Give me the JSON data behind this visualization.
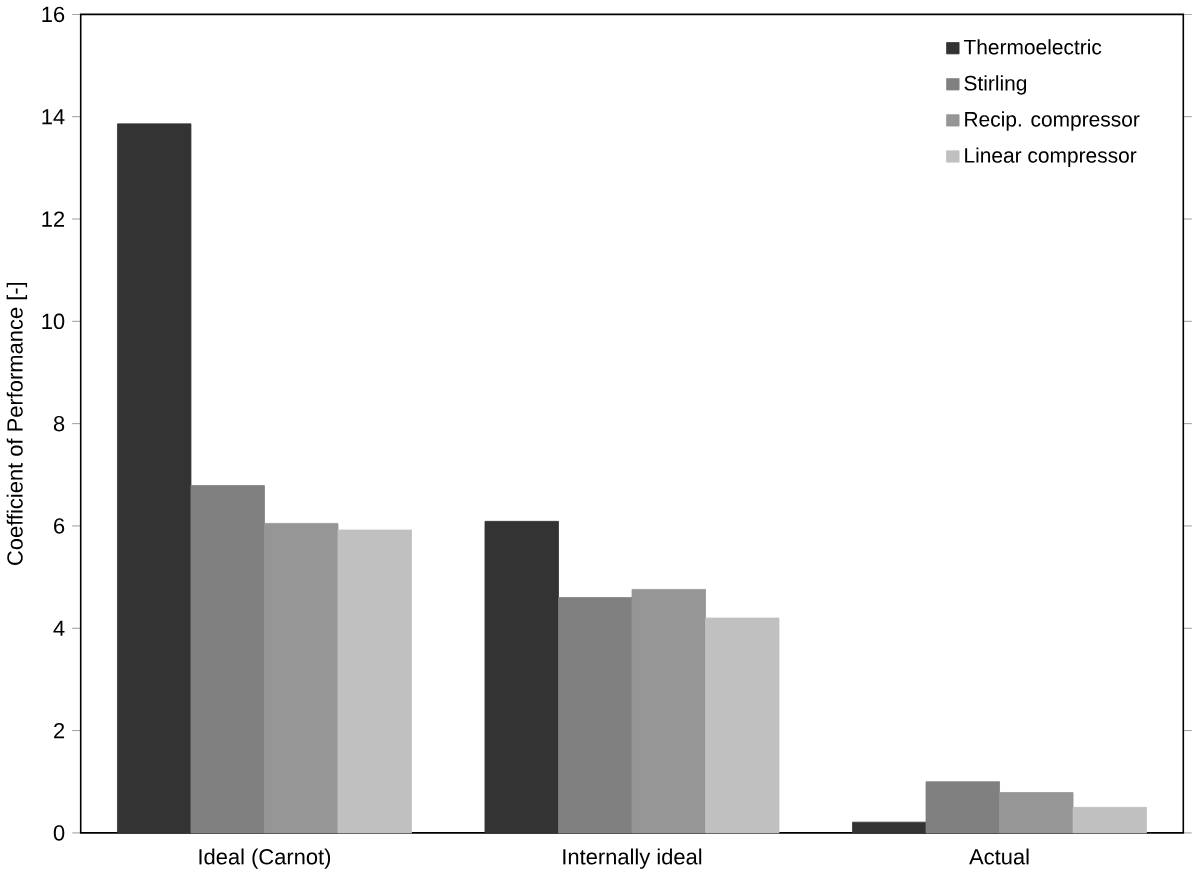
{
  "chart_data": {
    "type": "bar",
    "ylabel": "Coefficient of Performance [-]",
    "categories": [
      "Ideal (Carnot)",
      "Internally ideal",
      "Actual"
    ],
    "series": [
      {
        "name": "Thermoelectric",
        "color": "#333333",
        "values": [
          13.86,
          6.09,
          0.21
        ]
      },
      {
        "name": "Stirling",
        "color": "#808080",
        "values": [
          6.79,
          4.6,
          1.0
        ]
      },
      {
        "name": "Recip. compressor",
        "color": "#969696",
        "values": [
          6.05,
          4.76,
          0.79
        ]
      },
      {
        "name": "Linear compressor",
        "color": "#c0c0c0",
        "values": [
          5.92,
          4.2,
          0.5
        ]
      }
    ],
    "ylim": [
      0,
      16
    ],
    "yticks": [
      0,
      2,
      4,
      6,
      8,
      10,
      12,
      14,
      16
    ],
    "legend": "top right",
    "grid": false
  }
}
